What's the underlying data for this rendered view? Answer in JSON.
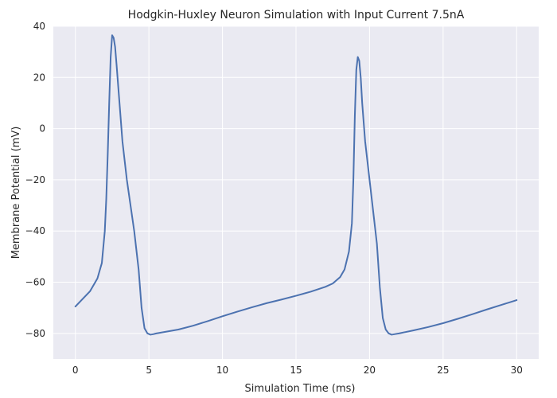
{
  "chart_data": {
    "type": "line",
    "title": "Hodgkin-Huxley Neuron Simulation with Input Current 7.5nA",
    "xlabel": "Simulation Time (ms)",
    "ylabel": "Membrane Potential (mV)",
    "xlim": [
      -1.5,
      31.5
    ],
    "ylim": [
      -90,
      40
    ],
    "xticks": [
      0,
      5,
      10,
      15,
      20,
      25,
      30
    ],
    "yticks": [
      -80,
      -60,
      -40,
      -20,
      0,
      20,
      40
    ],
    "xtick_labels": [
      "0",
      "5",
      "10",
      "15",
      "20",
      "25",
      "30"
    ],
    "ytick_labels": [
      "−80",
      "−60",
      "−40",
      "−20",
      "0",
      "20",
      "40"
    ],
    "grid": true,
    "colors": {
      "background": "#eaeaf2",
      "grid": "#ffffff",
      "line": "#4c72b0"
    },
    "series": [
      {
        "x": [
          0,
          0.5,
          1.0,
          1.5,
          1.8,
          2.0,
          2.1,
          2.2,
          2.3,
          2.4,
          2.5,
          2.6,
          2.7,
          2.8,
          3.0,
          3.2,
          3.5,
          3.8,
          4.0,
          4.3,
          4.5,
          4.7,
          4.9,
          5.1,
          5.3,
          5.5,
          6,
          7,
          8,
          9,
          10,
          11,
          12,
          13,
          14,
          15,
          16,
          17,
          17.5,
          18.0,
          18.3,
          18.6,
          18.8,
          18.9,
          19.0,
          19.1,
          19.2,
          19.3,
          19.4,
          19.5,
          19.7,
          20.0,
          20.3,
          20.5,
          20.7,
          20.9,
          21.1,
          21.3,
          21.5,
          21.7,
          22,
          23,
          24,
          25,
          26,
          27,
          28,
          29,
          30
        ],
        "y": [
          -69.5,
          -66.5,
          -63.5,
          -58.5,
          -52.5,
          -40.0,
          -27.5,
          -10.0,
          10.0,
          28.0,
          36.5,
          35.5,
          32.0,
          25.0,
          10.0,
          -5.0,
          -20.0,
          -32.0,
          -40.0,
          -55.0,
          -70.0,
          -78.0,
          -80.0,
          -80.5,
          -80.3,
          -80.0,
          -79.5,
          -78.5,
          -77.0,
          -75.2,
          -73.3,
          -71.5,
          -69.8,
          -68.2,
          -66.8,
          -65.3,
          -63.7,
          -61.8,
          -60.5,
          -58.0,
          -55.0,
          -48.0,
          -37.0,
          -20.0,
          5.0,
          23.0,
          28.0,
          26.5,
          20.0,
          10.0,
          -5.0,
          -20.0,
          -35.0,
          -45.0,
          -62.0,
          -74.0,
          -78.5,
          -80.0,
          -80.5,
          -80.3,
          -80.0,
          -78.8,
          -77.5,
          -76.0,
          -74.3,
          -72.5,
          -70.6,
          -68.8,
          -67.0
        ]
      }
    ]
  }
}
